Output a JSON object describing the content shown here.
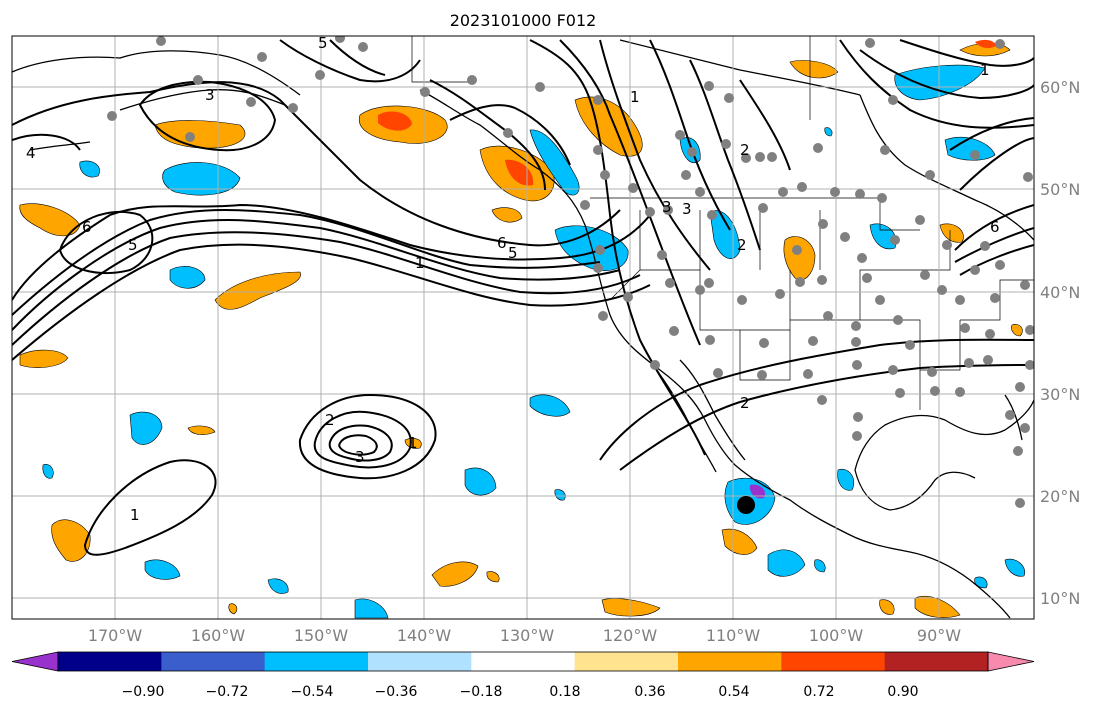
{
  "title": "2023101000 F012",
  "lon_labels": [
    "170°W",
    "160°W",
    "150°W",
    "140°W",
    "130°W",
    "120°W",
    "110°W",
    "100°W",
    "90°W"
  ],
  "lat_labels": [
    "60°N",
    "50°N",
    "40°N",
    "30°N",
    "20°N",
    "10°N"
  ],
  "colorbar": {
    "tick_labels": [
      "−0.90",
      "−0.72",
      "−0.54",
      "−0.36",
      "−0.18",
      "0.18",
      "0.36",
      "0.54",
      "0.72",
      "0.90"
    ],
    "colors": [
      "#9932CC",
      "#00008B",
      "#3A5FCD",
      "#00BFFF",
      "#B0E2FF",
      "#FFFFFF",
      "#FFE38F",
      "#FFA500",
      "#FF4500",
      "#B22222",
      "#F88AAE"
    ]
  },
  "contour_labels": [
    "4",
    "6",
    "5",
    "1",
    "6",
    "5",
    "3",
    "1",
    "2",
    "3",
    "2",
    "1",
    "3",
    "2",
    "1",
    "6",
    "2",
    "3",
    "1",
    "5"
  ],
  "colors": {
    "land_outline": "#000000",
    "grid": "#b0b0b0",
    "station": "#808080",
    "storm_center": "#000000"
  }
}
